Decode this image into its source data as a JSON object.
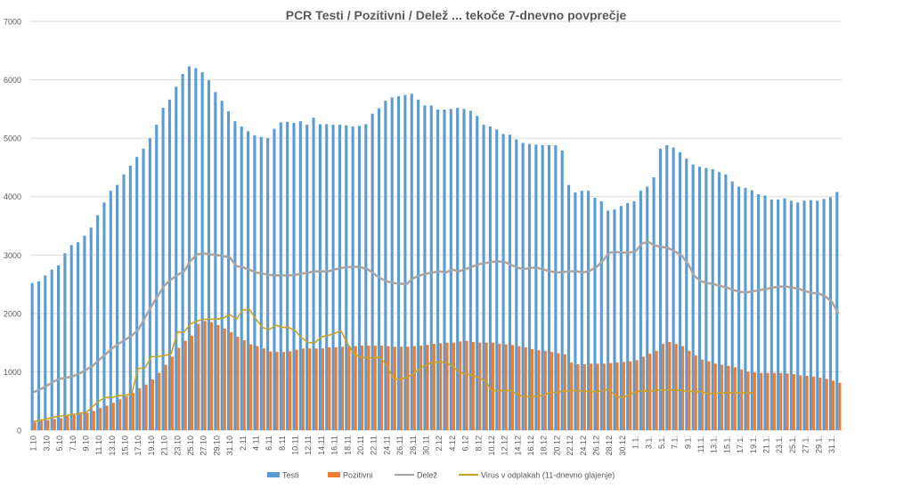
{
  "chart_data": {
    "type": "bar_line",
    "title": "PCR Testi / Pozitivni / Delež ... tekoče 7-dnevno povprečje",
    "categories": [
      "1.10",
      null,
      "3.10",
      null,
      "5.10",
      null,
      "7.10",
      null,
      "9.10",
      null,
      "11.10",
      null,
      "13.10",
      null,
      "15.10",
      null,
      "17.10",
      null,
      "19.10",
      null,
      "21.10",
      null,
      "23.10",
      null,
      "25.10",
      null,
      "27.10",
      null,
      "29.10",
      null,
      "31.10",
      null,
      "2.11",
      null,
      "4.11",
      null,
      "6.11",
      null,
      "8.11",
      null,
      "10.11",
      null,
      "12.11",
      null,
      "14.11",
      null,
      "16.11",
      null,
      "18.11",
      null,
      "20.11",
      null,
      "22.11",
      null,
      "24.11",
      null,
      "26.11",
      null,
      "28.11",
      null,
      "30.11",
      null,
      "2.12",
      null,
      "4.12",
      null,
      "6.12",
      null,
      "8.12",
      null,
      "10.12",
      null,
      "12.12",
      null,
      "14.12",
      null,
      "16.12",
      null,
      "18.12",
      null,
      "20.12",
      null,
      "22.12",
      null,
      "24.12",
      null,
      "26.12",
      null,
      "28.12",
      null,
      "30.12",
      null,
      "1.1.",
      null,
      "3.1.",
      null,
      "5.1.",
      null,
      "7.1.",
      null,
      "9.1.",
      null,
      "11.1.",
      null,
      "13.1.",
      null,
      "15.1.",
      null,
      "17.1.",
      null,
      "19.1.",
      null,
      "21.1.",
      null,
      "23.1.",
      null,
      "25.1.",
      null,
      "27.1.",
      null,
      "29.1.",
      null,
      "31.1.",
      null
    ],
    "series": [
      {
        "name": "Testi",
        "kind": "bar",
        "color": "#5b9bd5",
        "values": [
          2520,
          2550,
          2650,
          2750,
          2820,
          3030,
          3170,
          3220,
          3330,
          3470,
          3680,
          3900,
          4100,
          4200,
          4380,
          4530,
          4680,
          4820,
          5000,
          5230,
          5520,
          5660,
          5880,
          6100,
          6230,
          6200,
          6130,
          5990,
          5790,
          5640,
          5460,
          5290,
          5200,
          5120,
          5050,
          5020,
          5000,
          5160,
          5270,
          5280,
          5260,
          5290,
          5230,
          5350,
          5240,
          5240,
          5230,
          5230,
          5220,
          5200,
          5210,
          5240,
          5420,
          5510,
          5640,
          5700,
          5720,
          5740,
          5760,
          5660,
          5560,
          5560,
          5490,
          5490,
          5500,
          5520,
          5500,
          5470,
          5380,
          5230,
          5200,
          5150,
          5070,
          5060,
          4980,
          4920,
          4900,
          4890,
          4880,
          4880,
          4880,
          4790,
          4200,
          4070,
          4100,
          4100,
          3980,
          3920,
          3760,
          3780,
          3840,
          3890,
          3920,
          4100,
          4170,
          4330,
          4820,
          4880,
          4840,
          4760,
          4650,
          4550,
          4510,
          4490,
          4470,
          4420,
          4380,
          4260,
          4170,
          4150,
          4110,
          4040,
          4020,
          3950,
          3950,
          3970,
          3930,
          3900,
          3930,
          3940,
          3930,
          3960,
          3990,
          4080
        ]
      },
      {
        "name": "Pozitivni",
        "kind": "bar",
        "color": "#ed7d31",
        "values": [
          140,
          160,
          170,
          190,
          210,
          240,
          260,
          280,
          300,
          330,
          380,
          420,
          470,
          530,
          580,
          640,
          720,
          780,
          870,
          980,
          1120,
          1260,
          1410,
          1530,
          1620,
          1820,
          1870,
          1850,
          1800,
          1740,
          1680,
          1600,
          1540,
          1470,
          1440,
          1400,
          1350,
          1340,
          1340,
          1350,
          1380,
          1400,
          1400,
          1400,
          1400,
          1420,
          1420,
          1430,
          1440,
          1440,
          1450,
          1450,
          1450,
          1450,
          1440,
          1430,
          1430,
          1430,
          1440,
          1450,
          1460,
          1480,
          1490,
          1500,
          1500,
          1520,
          1530,
          1510,
          1500,
          1500,
          1500,
          1480,
          1470,
          1460,
          1440,
          1420,
          1390,
          1370,
          1360,
          1340,
          1320,
          1300,
          1160,
          1130,
          1130,
          1140,
          1140,
          1140,
          1150,
          1160,
          1170,
          1180,
          1200,
          1260,
          1310,
          1360,
          1480,
          1510,
          1480,
          1440,
          1360,
          1280,
          1210,
          1180,
          1140,
          1120,
          1100,
          1080,
          1040,
          1000,
          990,
          980,
          980,
          980,
          980,
          970,
          960,
          940,
          930,
          920,
          900,
          880,
          850,
          810
        ]
      },
      {
        "name": "Delež",
        "kind": "line",
        "color": "#a5a5a5",
        "values": [
          650,
          700,
          760,
          830,
          880,
          900,
          920,
          970,
          1030,
          1100,
          1200,
          1300,
          1400,
          1480,
          1550,
          1620,
          1720,
          1920,
          2120,
          2300,
          2480,
          2580,
          2660,
          2720,
          2900,
          3010,
          3030,
          3010,
          3000,
          2980,
          2960,
          2810,
          2790,
          2750,
          2700,
          2680,
          2660,
          2650,
          2650,
          2650,
          2660,
          2680,
          2700,
          2720,
          2720,
          2720,
          2750,
          2780,
          2790,
          2800,
          2790,
          2760,
          2680,
          2600,
          2550,
          2520,
          2510,
          2500,
          2600,
          2650,
          2680,
          2700,
          2720,
          2700,
          2750,
          2720,
          2760,
          2800,
          2840,
          2860,
          2880,
          2890,
          2880,
          2830,
          2780,
          2760,
          2780,
          2780,
          2750,
          2720,
          2700,
          2710,
          2720,
          2720,
          2700,
          2730,
          2790,
          2900,
          3040,
          3050,
          3040,
          3040,
          3060,
          3200,
          3220,
          3160,
          3140,
          3120,
          3060,
          3000,
          2850,
          2640,
          2550,
          2520,
          2500,
          2470,
          2440,
          2400,
          2370,
          2360,
          2380,
          2400,
          2420,
          2440,
          2460,
          2460,
          2440,
          2420,
          2380,
          2350,
          2340,
          2290,
          2200,
          2000
        ]
      },
      {
        "name": "Virus v odplakah (11-dnevno glajenje)",
        "kind": "line",
        "color": "#c9a227",
        "values": [
          150,
          170,
          190,
          220,
          240,
          250,
          270,
          290,
          300,
          400,
          500,
          560,
          560,
          590,
          600,
          620,
          1060,
          1060,
          1260,
          1260,
          1280,
          1300,
          1680,
          1680,
          1820,
          1870,
          1900,
          1900,
          1900,
          1920,
          1980,
          1900,
          2060,
          2070,
          1900,
          1760,
          1720,
          1800,
          1760,
          1760,
          1700,
          1580,
          1500,
          1500,
          1600,
          1620,
          1660,
          1700,
          1480,
          1300,
          1250,
          1240,
          1240,
          1250,
          1100,
          880,
          870,
          900,
          960,
          1050,
          1120,
          1160,
          1170,
          1160,
          1100,
          1000,
          960,
          950,
          900,
          850,
          680,
          680,
          680,
          680,
          600,
          580,
          570,
          580,
          600,
          650,
          650,
          670,
          680,
          680,
          670,
          660,
          660,
          680,
          700,
          580,
          560,
          600,
          660,
          670,
          670,
          680,
          690,
          690,
          690,
          680,
          670,
          660,
          660,
          630,
          630,
          640,
          640,
          640,
          640,
          640,
          640,
          null,
          null,
          null,
          null,
          null,
          null,
          null,
          null,
          null,
          null,
          null,
          null,
          null
        ]
      }
    ],
    "ylim": [
      0,
      7000
    ],
    "yticks": [
      0,
      1000,
      2000,
      3000,
      4000,
      5000,
      6000,
      7000
    ],
    "grid": true,
    "legend": "bottom"
  }
}
